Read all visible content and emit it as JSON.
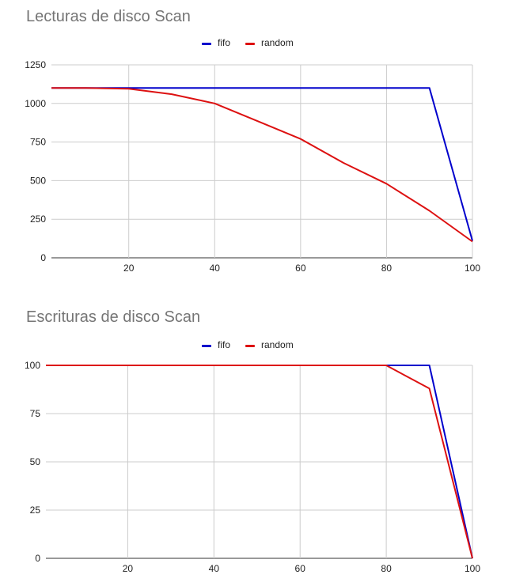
{
  "chart_data": [
    {
      "type": "line",
      "title": "Lecturas de disco Scan",
      "xlabel": "",
      "ylabel": "",
      "xlim": [
        2,
        100
      ],
      "ylim": [
        0,
        1250
      ],
      "x_ticks": [
        20,
        40,
        60,
        80,
        100
      ],
      "y_ticks": [
        0,
        250,
        500,
        750,
        1000,
        1250
      ],
      "grid": true,
      "legend_position": "top-center",
      "series": [
        {
          "name": "fifo",
          "color": "#0000cc",
          "x": [
            2,
            10,
            20,
            30,
            40,
            50,
            60,
            70,
            80,
            90,
            100
          ],
          "y": [
            1100,
            1100,
            1100,
            1100,
            1100,
            1100,
            1100,
            1100,
            1100,
            1100,
            110
          ]
        },
        {
          "name": "random",
          "color": "#dd1111",
          "x": [
            2,
            10,
            20,
            30,
            40,
            50,
            60,
            70,
            80,
            90,
            100
          ],
          "y": [
            1100,
            1100,
            1095,
            1060,
            1000,
            885,
            770,
            615,
            480,
            305,
            105
          ]
        }
      ]
    },
    {
      "type": "line",
      "title": "Escrituras de disco Scan",
      "xlabel": "",
      "ylabel": "",
      "xlim": [
        1,
        100
      ],
      "ylim": [
        0,
        100
      ],
      "x_ticks": [
        20,
        40,
        60,
        80,
        100
      ],
      "y_ticks": [
        0,
        25,
        50,
        75,
        100
      ],
      "grid": true,
      "legend_position": "top-center",
      "series": [
        {
          "name": "fifo",
          "color": "#0000cc",
          "x": [
            1,
            10,
            20,
            30,
            40,
            50,
            60,
            70,
            80,
            90,
            100
          ],
          "y": [
            100,
            100,
            100,
            100,
            100,
            100,
            100,
            100,
            100,
            100,
            0
          ]
        },
        {
          "name": "random",
          "color": "#dd1111",
          "x": [
            1,
            10,
            20,
            30,
            40,
            50,
            60,
            70,
            80,
            90,
            100
          ],
          "y": [
            100,
            100,
            100,
            100,
            100,
            100,
            100,
            100,
            100,
            88,
            0
          ]
        }
      ]
    }
  ]
}
